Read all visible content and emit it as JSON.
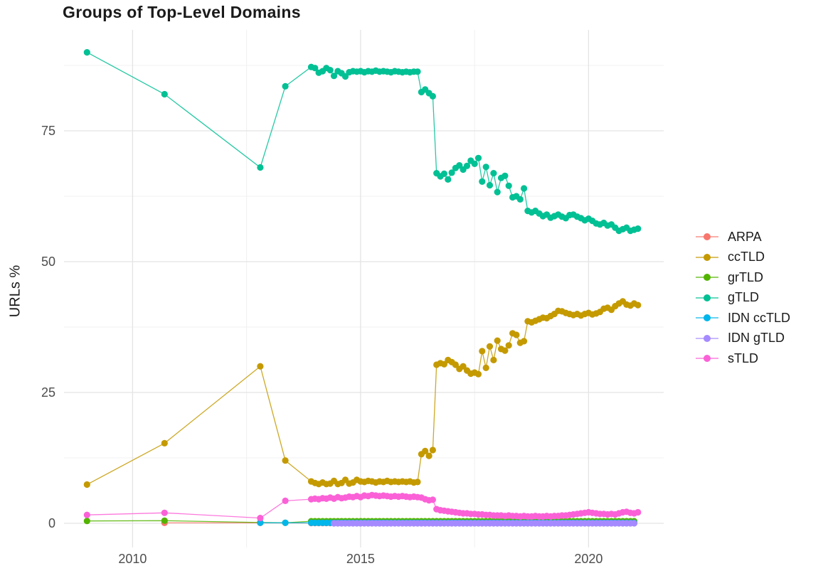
{
  "title": "Groups of Top-Level Domains",
  "axes": {
    "y_label": "URLs %",
    "y_ticks": [
      "0",
      "25",
      "50",
      "75"
    ],
    "y_tick_values": [
      0,
      25,
      50,
      75
    ],
    "x_ticks": [
      "2010",
      "2015",
      "2020"
    ],
    "x_tick_values": [
      2010,
      2015,
      2020
    ]
  },
  "style": {
    "grid_major_color": "#e4e4e4",
    "grid_minor_color": "#f0f0f0",
    "tick_text_color": "#4d4d4d",
    "background": "#ffffff"
  },
  "chart_data": {
    "type": "scatter",
    "title": "Groups of Top-Level Domains",
    "xlabel": "",
    "ylabel": "URLs %",
    "xlim": [
      2008.5,
      2021.6
    ],
    "ylim": [
      0,
      94
    ],
    "grid": true,
    "legend_position": "right",
    "x_minor_gridlines": [
      2012.5,
      2017.5
    ],
    "y_minor_gridlines": [
      12.5,
      37.5,
      62.5,
      87.5
    ],
    "series": [
      {
        "name": "ARPA",
        "color": "#F8766D",
        "sparse": [
          [
            2010.7,
            0.08
          ],
          [
            2012.8,
            0.08
          ]
        ],
        "dense": {
          "start": 2013.9167,
          "step": 0.083333,
          "end": 2021.0833,
          "value": 0.05
        }
      },
      {
        "name": "ccTLD",
        "color": "#C49A00",
        "sparse": [
          [
            2009.0,
            7.4
          ],
          [
            2010.7,
            15.3
          ],
          [
            2012.8,
            30.0
          ],
          [
            2013.35,
            12.0
          ]
        ],
        "dense": {
          "start": 2013.9167,
          "step": 0.083333,
          "values": [
            8.0,
            7.7,
            7.5,
            7.8,
            7.5,
            7.6,
            8.1,
            7.5,
            7.7,
            8.3,
            7.6,
            7.8,
            8.3,
            8.0,
            7.9,
            8.1,
            8.0,
            7.8,
            8.0,
            7.9,
            8.1,
            7.9,
            8.0,
            7.9,
            8.0,
            7.9,
            8.0,
            7.8,
            7.9,
            13.2,
            13.8,
            12.9,
            14.0,
            30.3,
            30.6,
            30.4,
            31.2,
            30.8,
            30.3,
            29.5,
            30.0,
            29.2,
            28.6,
            28.8,
            28.5,
            32.9,
            29.7,
            33.8,
            31.2,
            34.9,
            33.3,
            33.0,
            34.0,
            36.3,
            36.0,
            34.5,
            34.8,
            38.6,
            38.4,
            38.7,
            39.0,
            39.3,
            39.2,
            39.6,
            40.0,
            40.6,
            40.5,
            40.2,
            40.0,
            39.8,
            40.0,
            39.7,
            40.0,
            40.2,
            39.9,
            40.1,
            40.4,
            41.0,
            41.2,
            40.8,
            41.5,
            42.0,
            42.4,
            41.8,
            41.6,
            42.0,
            41.7
          ]
        }
      },
      {
        "name": "grTLD",
        "color": "#53B400",
        "sparse": [
          [
            2009.0,
            0.45
          ],
          [
            2010.7,
            0.5
          ],
          [
            2012.8,
            0.15
          ],
          [
            2013.35,
            0.1
          ]
        ],
        "dense": {
          "start": 2013.9167,
          "step": 0.083333,
          "end": 2021.0833,
          "value": 0.4
        }
      },
      {
        "name": "gTLD",
        "color": "#00C094",
        "sparse": [
          [
            2009.0,
            90.0
          ],
          [
            2010.7,
            82.0
          ],
          [
            2012.8,
            68.0
          ],
          [
            2013.35,
            83.5
          ]
        ],
        "dense": {
          "start": 2013.9167,
          "step": 0.083333,
          "values": [
            87.2,
            87.0,
            86.1,
            86.4,
            87.0,
            86.6,
            85.5,
            86.4,
            86.0,
            85.4,
            86.2,
            86.4,
            86.3,
            86.4,
            86.2,
            86.4,
            86.3,
            86.5,
            86.3,
            86.4,
            86.3,
            86.2,
            86.4,
            86.3,
            86.2,
            86.3,
            86.2,
            86.3,
            86.3,
            82.4,
            82.9,
            82.2,
            81.6,
            66.9,
            66.3,
            66.8,
            65.7,
            67.0,
            67.9,
            68.4,
            67.6,
            68.3,
            69.3,
            68.7,
            69.8,
            65.3,
            68.1,
            64.6,
            66.9,
            63.3,
            66.0,
            66.4,
            64.5,
            62.3,
            62.5,
            61.9,
            64.0,
            59.7,
            59.4,
            59.7,
            59.2,
            58.7,
            59.0,
            58.4,
            58.7,
            59.0,
            58.6,
            58.3,
            58.9,
            59.0,
            58.6,
            58.3,
            57.9,
            58.2,
            57.8,
            57.3,
            57.1,
            57.4,
            56.9,
            57.1,
            56.5,
            55.9,
            56.2,
            56.5,
            55.9,
            56.1,
            56.3
          ]
        }
      },
      {
        "name": "IDN ccTLD",
        "color": "#00B6EB",
        "sparse": [
          [
            2012.8,
            0.1
          ],
          [
            2013.35,
            0.1
          ]
        ],
        "dense": {
          "start": 2013.9167,
          "step": 0.083333,
          "end": 2021.0833,
          "value": 0.08
        }
      },
      {
        "name": "IDN gTLD",
        "color": "#A58AFF",
        "sparse": [],
        "dense": {
          "start": 2014.4167,
          "step": 0.083333,
          "end": 2021.0833,
          "value": 0.0
        }
      },
      {
        "name": "sTLD",
        "color": "#FB61D7",
        "sparse": [
          [
            2009.0,
            1.6
          ],
          [
            2010.7,
            2.0
          ],
          [
            2012.8,
            1.0
          ],
          [
            2013.35,
            4.3
          ]
        ],
        "dense": {
          "start": 2013.9167,
          "step": 0.083333,
          "values": [
            4.6,
            4.7,
            4.6,
            4.8,
            4.7,
            4.9,
            4.7,
            5.0,
            4.8,
            4.9,
            5.1,
            5.0,
            5.2,
            5.0,
            5.3,
            5.2,
            5.4,
            5.3,
            5.2,
            5.3,
            5.2,
            5.1,
            5.2,
            5.1,
            5.2,
            5.1,
            5.0,
            5.1,
            5.0,
            4.9,
            4.6,
            4.4,
            4.5,
            2.7,
            2.5,
            2.4,
            2.3,
            2.2,
            2.1,
            2.0,
            1.9,
            1.9,
            1.8,
            1.8,
            1.7,
            1.7,
            1.6,
            1.6,
            1.5,
            1.5,
            1.5,
            1.4,
            1.5,
            1.4,
            1.4,
            1.3,
            1.4,
            1.3,
            1.3,
            1.4,
            1.3,
            1.3,
            1.4,
            1.3,
            1.4,
            1.4,
            1.5,
            1.5,
            1.6,
            1.7,
            1.8,
            1.9,
            2.0,
            2.1,
            2.0,
            1.9,
            1.8,
            1.8,
            1.7,
            1.8,
            1.7,
            1.9,
            2.1,
            2.2,
            2.0,
            1.9,
            2.1
          ]
        }
      }
    ]
  }
}
